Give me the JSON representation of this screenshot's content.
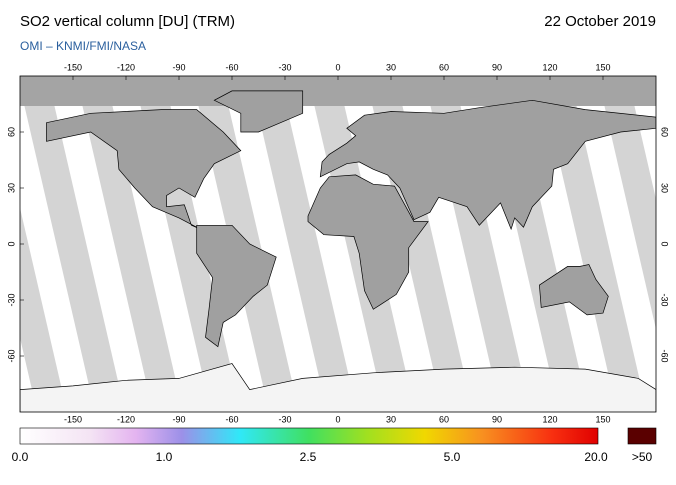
{
  "header": {
    "title": "SO2 vertical column [DU] (TRM)",
    "date": "22 October 2019",
    "source": "OMI – KNMI/FMI/NASA"
  },
  "map": {
    "lon_ticks": [
      -150,
      -120,
      -90,
      -60,
      -30,
      0,
      30,
      60,
      90,
      120,
      150
    ],
    "lat_ticks": [
      60,
      30,
      0,
      -30,
      -60
    ]
  },
  "colorbar": {
    "labels": [
      "0.0",
      "1.0",
      "2.5",
      "5.0",
      "20.0"
    ],
    "overflow_label": ">50"
  }
}
